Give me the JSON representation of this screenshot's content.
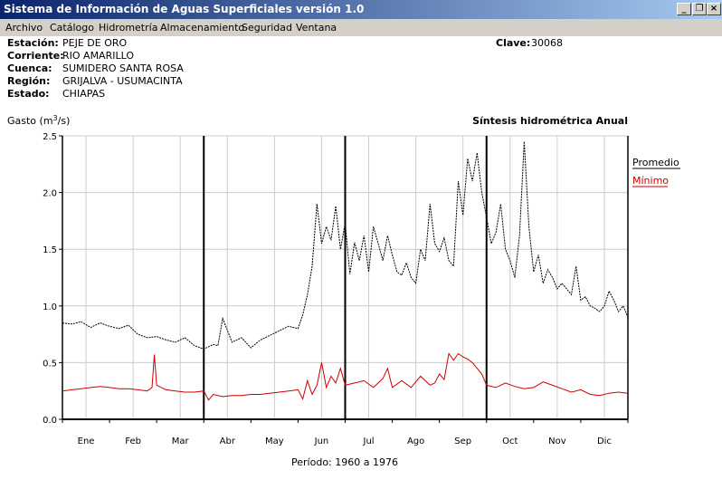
{
  "window": {
    "title": "Sistema de Información de Aguas Superficiales  versión 1.0",
    "minimize_glyph": "_",
    "restore_glyph": "❐",
    "close_glyph": "×"
  },
  "menu": [
    "Archivo",
    "Catálogo",
    "Hidrometría",
    "Almacenamiento",
    "Seguridad",
    "Ventana"
  ],
  "station": {
    "estacion_label": "Estación:",
    "estacion": "PEJE DE ORO",
    "corriente_label": "Corriente:",
    "corriente": "RIO AMARILLO",
    "cuenca_label": "Cuenca:",
    "cuenca": "SUMIDERO SANTA ROSA",
    "region_label": "Región:",
    "region": "GRIJALVA - USUMACINTA",
    "estado_label": "Estado:",
    "estado": "CHIAPAS",
    "clave_label": "Clave:",
    "clave": "30068"
  },
  "chart_data": {
    "type": "line",
    "title": "Síntesis hidrométrica   Anual",
    "ylabel": "Gasto (m3/s)",
    "ylabel_main": "Gasto (m",
    "ylabel_sup": "3",
    "ylabel_end": "/s)",
    "ylim": [
      0,
      2.5
    ],
    "yticks": [
      "0.0",
      "0.5",
      "1.0",
      "1.5",
      "2.0",
      "2.5"
    ],
    "xlim": [
      0,
      12
    ],
    "categories": [
      "Ene",
      "Feb",
      "Mar",
      "Abr",
      "May",
      "Jun",
      "Jul",
      "Ago",
      "Sep",
      "Oct",
      "Nov",
      "Dic"
    ],
    "grid": true,
    "legend_position": "right",
    "footer": "Período:  1960 a 1976",
    "series": [
      {
        "name": "Promedio",
        "color": "#000000",
        "x": [
          0.0,
          0.2,
          0.4,
          0.6,
          0.8,
          1.0,
          1.2,
          1.4,
          1.6,
          1.8,
          2.0,
          2.2,
          2.4,
          2.6,
          2.8,
          3.0,
          3.1,
          3.2,
          3.3,
          3.4,
          3.6,
          3.8,
          4.0,
          4.2,
          4.4,
          4.6,
          4.8,
          5.0,
          5.1,
          5.2,
          5.3,
          5.4,
          5.5,
          5.6,
          5.7,
          5.8,
          5.9,
          6.0,
          6.1,
          6.2,
          6.3,
          6.4,
          6.5,
          6.6,
          6.7,
          6.8,
          6.9,
          7.0,
          7.1,
          7.2,
          7.3,
          7.4,
          7.5,
          7.6,
          7.7,
          7.8,
          7.9,
          8.0,
          8.1,
          8.2,
          8.3,
          8.4,
          8.5,
          8.6,
          8.7,
          8.8,
          8.9,
          9.0,
          9.1,
          9.2,
          9.3,
          9.4,
          9.5,
          9.6,
          9.7,
          9.8,
          9.9,
          10.0,
          10.1,
          10.2,
          10.3,
          10.4,
          10.5,
          10.6,
          10.7,
          10.8,
          10.9,
          11.0,
          11.1,
          11.2,
          11.3,
          11.4,
          11.5,
          11.6,
          11.7,
          11.8,
          11.9,
          12.0
        ],
        "values": [
          0.85,
          0.84,
          0.86,
          0.81,
          0.85,
          0.82,
          0.8,
          0.83,
          0.75,
          0.72,
          0.73,
          0.7,
          0.68,
          0.72,
          0.65,
          0.62,
          0.64,
          0.66,
          0.65,
          0.89,
          0.68,
          0.72,
          0.63,
          0.7,
          0.74,
          0.78,
          0.82,
          0.8,
          0.92,
          1.1,
          1.35,
          1.9,
          1.55,
          1.7,
          1.58,
          1.88,
          1.5,
          1.73,
          1.28,
          1.56,
          1.4,
          1.62,
          1.3,
          1.7,
          1.55,
          1.4,
          1.62,
          1.45,
          1.3,
          1.27,
          1.38,
          1.25,
          1.2,
          1.5,
          1.4,
          1.9,
          1.55,
          1.48,
          1.6,
          1.4,
          1.35,
          2.1,
          1.8,
          2.3,
          2.1,
          2.35,
          2.0,
          1.78,
          1.55,
          1.65,
          1.9,
          1.5,
          1.4,
          1.25,
          1.62,
          2.45,
          1.7,
          1.3,
          1.45,
          1.2,
          1.32,
          1.25,
          1.15,
          1.2,
          1.15,
          1.1,
          1.35,
          1.05,
          1.08,
          1.0,
          0.98,
          0.95,
          1.0,
          1.13,
          1.05,
          0.95,
          1.0,
          0.9
        ]
      },
      {
        "name": "Mínimo",
        "color": "#cc0000",
        "x": [
          0.0,
          0.2,
          0.4,
          0.6,
          0.8,
          1.0,
          1.2,
          1.4,
          1.6,
          1.8,
          1.9,
          1.95,
          2.0,
          2.2,
          2.4,
          2.6,
          2.8,
          3.0,
          3.1,
          3.2,
          3.4,
          3.6,
          3.8,
          4.0,
          4.2,
          4.4,
          4.6,
          4.8,
          5.0,
          5.1,
          5.2,
          5.3,
          5.4,
          5.5,
          5.6,
          5.7,
          5.8,
          5.9,
          6.0,
          6.2,
          6.4,
          6.6,
          6.8,
          6.9,
          7.0,
          7.2,
          7.4,
          7.6,
          7.8,
          7.9,
          8.0,
          8.1,
          8.2,
          8.3,
          8.4,
          8.5,
          8.6,
          8.7,
          8.8,
          8.9,
          9.0,
          9.2,
          9.4,
          9.6,
          9.8,
          10.0,
          10.2,
          10.4,
          10.6,
          10.8,
          11.0,
          11.2,
          11.4,
          11.6,
          11.8,
          12.0
        ],
        "values": [
          0.25,
          0.26,
          0.27,
          0.28,
          0.29,
          0.28,
          0.27,
          0.27,
          0.26,
          0.25,
          0.28,
          0.57,
          0.3,
          0.26,
          0.25,
          0.24,
          0.24,
          0.25,
          0.17,
          0.22,
          0.2,
          0.21,
          0.21,
          0.22,
          0.22,
          0.23,
          0.24,
          0.25,
          0.26,
          0.18,
          0.34,
          0.22,
          0.3,
          0.5,
          0.28,
          0.38,
          0.32,
          0.45,
          0.3,
          0.32,
          0.34,
          0.28,
          0.36,
          0.45,
          0.28,
          0.34,
          0.28,
          0.38,
          0.3,
          0.32,
          0.4,
          0.35,
          0.58,
          0.52,
          0.58,
          0.55,
          0.53,
          0.5,
          0.45,
          0.4,
          0.3,
          0.28,
          0.32,
          0.29,
          0.27,
          0.28,
          0.33,
          0.3,
          0.27,
          0.24,
          0.26,
          0.22,
          0.21,
          0.23,
          0.24,
          0.23
        ]
      }
    ]
  }
}
